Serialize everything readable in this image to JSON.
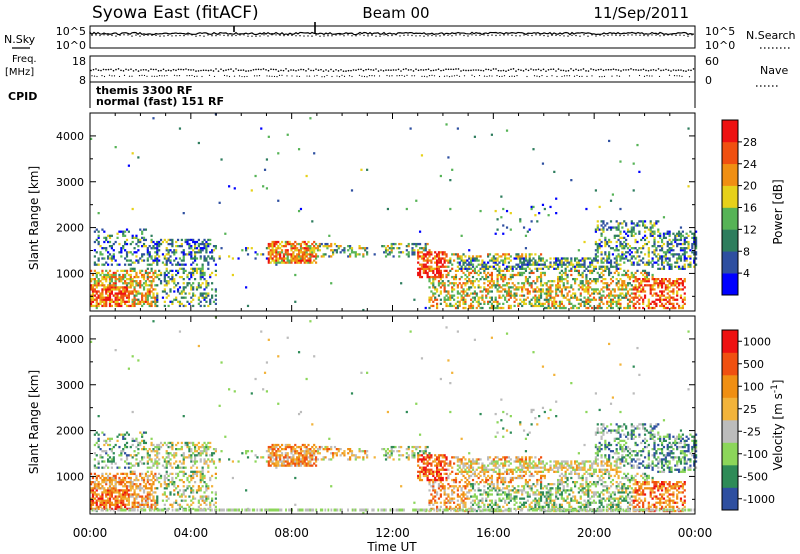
{
  "header": {
    "site": "Syowa East (fitACF)",
    "beam": "Beam 00",
    "date": "11/Sep/2011"
  },
  "strips": {
    "nsky_label": "N.Sky",
    "nsky_ticks": [
      "10^5",
      "10^0"
    ],
    "nsearch_label": "N.Search",
    "nsearch_ticks": [
      "10^5",
      "10^0"
    ],
    "freq_label": "Freq.",
    "freq_unit": "[MHz]",
    "freq_ticks": [
      "18",
      "8"
    ],
    "nave_label": "Nave",
    "nave_ticks": [
      "60",
      "0"
    ],
    "cpid_label": "CPID",
    "cpid_lines": [
      "themis 3300 RF",
      "normal (fast) 151 RF"
    ]
  },
  "colors": {
    "power_scale": [
      "#0000ff",
      "#2e4fa0",
      "#2e7d5e",
      "#56b356",
      "#e6d11a",
      "#f08f12",
      "#f05010",
      "#ee1111"
    ],
    "velocity_scale": [
      "#ee1111",
      "#f05010",
      "#f08f12",
      "#f2b33a",
      "#bcbcbc",
      "#8cd65a",
      "#2e8b57",
      "#2e4fa0"
    ]
  },
  "chart_data": [
    {
      "type": "heatmap",
      "name": "power",
      "xlabel": "",
      "ylabel": "Slant Range [km]",
      "x_range": [
        0,
        24
      ],
      "ylim": [
        180,
        4500
      ],
      "y_ticks": [
        "1000",
        "2000",
        "3000",
        "4000"
      ],
      "colorbar_label": "Power [dB]",
      "colorbar_ticks": [
        "4",
        "8",
        "12",
        "16",
        "20",
        "24",
        "28"
      ],
      "colorbar_range": [
        0,
        32
      ]
    },
    {
      "type": "heatmap",
      "name": "velocity",
      "xlabel": "Time UT",
      "ylabel": "Slant Range [km]",
      "x_range": [
        0,
        24
      ],
      "x_ticks": [
        "00:00",
        "04:00",
        "08:00",
        "12:00",
        "16:00",
        "20:00",
        "00:00"
      ],
      "ylim": [
        180,
        4500
      ],
      "y_ticks": [
        "1000",
        "2000",
        "3000",
        "4000"
      ],
      "colorbar_label": "Velocity [m s^-1]",
      "colorbar_ticks": [
        "1000",
        "500",
        "100",
        "25",
        "-25",
        "-100",
        "-500",
        "-1000"
      ]
    }
  ]
}
